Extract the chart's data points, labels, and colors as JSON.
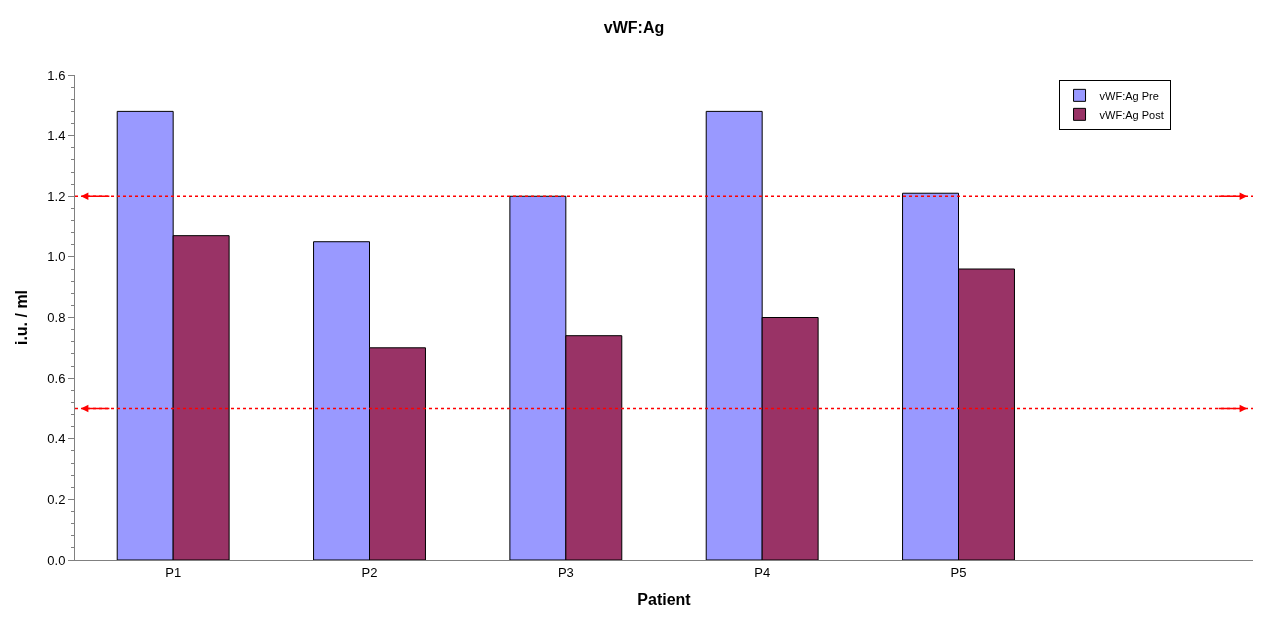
{
  "chart_data": {
    "type": "bar",
    "title": "vWF:Ag",
    "xlabel": "Patient",
    "ylabel": "i.u. / ml",
    "categories": [
      "P1",
      "P2",
      "P3",
      "P4",
      "P5",
      null
    ],
    "series": [
      {
        "name": "vWF:Ag Pre",
        "color": "#9999ff",
        "values": [
          1.48,
          1.05,
          1.2,
          1.48,
          1.21,
          null
        ]
      },
      {
        "name": "vWF:Ag Post",
        "color": "#993366",
        "values": [
          1.07,
          0.7,
          0.74,
          0.8,
          0.96,
          null
        ]
      }
    ],
    "ylim": [
      0,
      1.6
    ],
    "yticks": [
      "0.0",
      0.2,
      0.4,
      0.6,
      0.8,
      "1.0",
      1.2,
      1.4,
      1.6
    ],
    "ref_lines": [
      {
        "axis": "y",
        "value": 1.2,
        "color": "#ff0000",
        "line_style": "dotted"
      },
      {
        "axis": "y",
        "value": 0.5,
        "color": "#ff0000",
        "line_style": "dotted"
      }
    ],
    "legend": "top right"
  }
}
